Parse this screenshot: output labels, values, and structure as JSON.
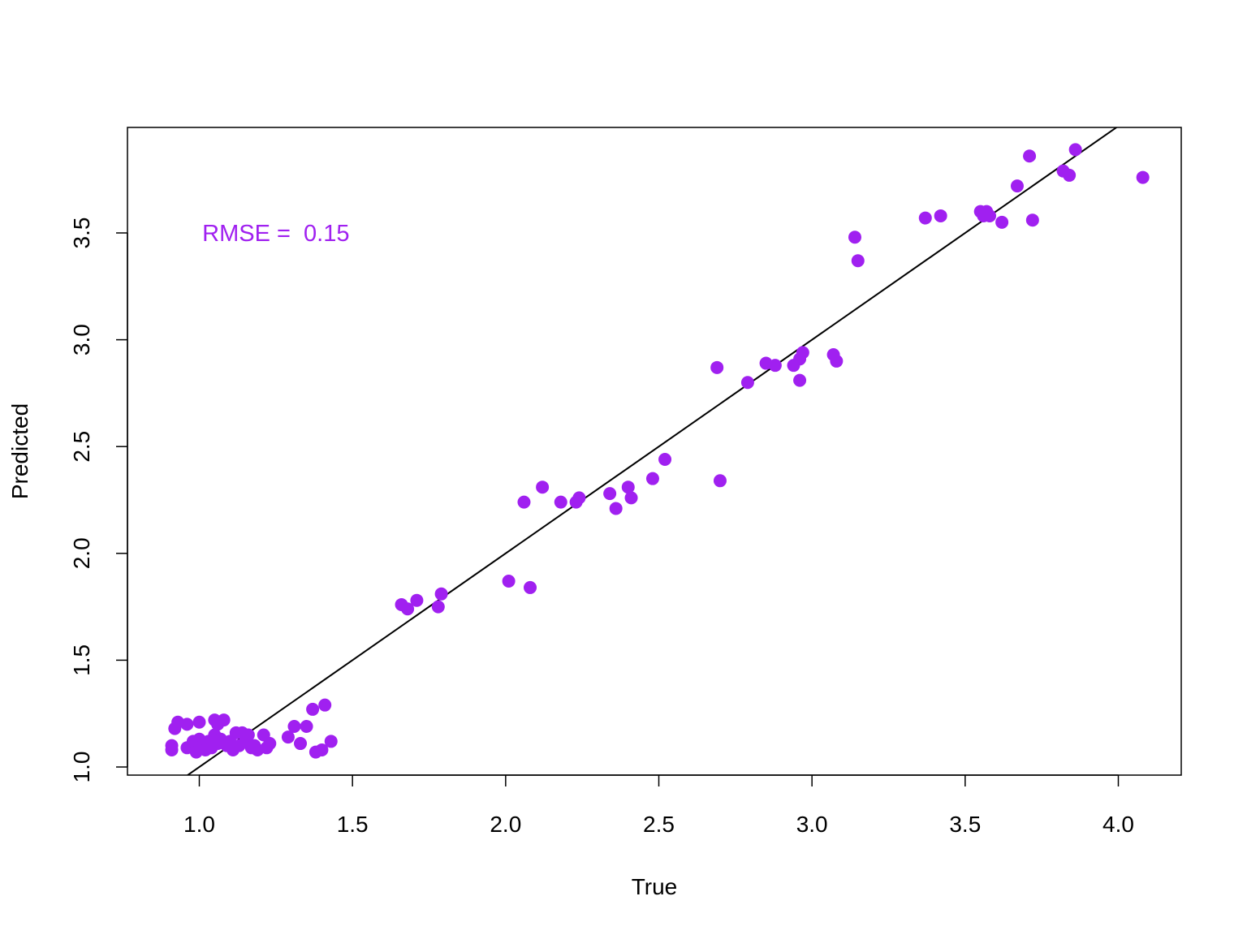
{
  "chart_data": {
    "type": "scatter",
    "title": "",
    "xlabel": "True",
    "ylabel": "Predicted",
    "xlim": [
      0.9,
      4.1
    ],
    "ylim": [
      0.96,
      4.0
    ],
    "xticks": [
      1.0,
      1.5,
      2.0,
      2.5,
      3.0,
      3.5,
      4.0
    ],
    "xtick_labels": [
      "1.0",
      "1.5",
      "2.0",
      "2.5",
      "3.0",
      "3.5",
      "4.0"
    ],
    "yticks": [
      1.0,
      1.5,
      2.0,
      2.5,
      3.0,
      3.5
    ],
    "ytick_labels": [
      "1.0",
      "1.5",
      "2.0",
      "2.5",
      "3.0",
      "3.5"
    ],
    "grid": false,
    "point_color": "#A020F0",
    "line_color": "#000000",
    "annotation": {
      "text": "RMSE =  0.15",
      "x": 1.25,
      "y": 3.5,
      "color": "#A020F0"
    },
    "reference_line": {
      "intercept": 0,
      "slope": 1
    },
    "points": [
      [
        0.91,
        1.1
      ],
      [
        0.91,
        1.08
      ],
      [
        0.92,
        1.18
      ],
      [
        0.93,
        1.21
      ],
      [
        0.96,
        1.2
      ],
      [
        0.96,
        1.09
      ],
      [
        0.98,
        1.12
      ],
      [
        0.99,
        1.07
      ],
      [
        1.0,
        1.13
      ],
      [
        1.0,
        1.21
      ],
      [
        1.01,
        1.1
      ],
      [
        1.02,
        1.08
      ],
      [
        1.03,
        1.12
      ],
      [
        1.04,
        1.09
      ],
      [
        1.05,
        1.22
      ],
      [
        1.05,
        1.15
      ],
      [
        1.06,
        1.2
      ],
      [
        1.06,
        1.11
      ],
      [
        1.07,
        1.13
      ],
      [
        1.08,
        1.22
      ],
      [
        1.09,
        1.1
      ],
      [
        1.1,
        1.12
      ],
      [
        1.11,
        1.08
      ],
      [
        1.12,
        1.16
      ],
      [
        1.13,
        1.1
      ],
      [
        1.14,
        1.16
      ],
      [
        1.15,
        1.12
      ],
      [
        1.16,
        1.15
      ],
      [
        1.17,
        1.09
      ],
      [
        1.18,
        1.1
      ],
      [
        1.19,
        1.08
      ],
      [
        1.21,
        1.15
      ],
      [
        1.22,
        1.09
      ],
      [
        1.23,
        1.11
      ],
      [
        1.29,
        1.14
      ],
      [
        1.31,
        1.19
      ],
      [
        1.33,
        1.11
      ],
      [
        1.35,
        1.19
      ],
      [
        1.37,
        1.27
      ],
      [
        1.38,
        1.07
      ],
      [
        1.4,
        1.08
      ],
      [
        1.41,
        1.29
      ],
      [
        1.43,
        1.12
      ],
      [
        1.66,
        1.76
      ],
      [
        1.68,
        1.74
      ],
      [
        1.71,
        1.78
      ],
      [
        1.78,
        1.75
      ],
      [
        1.79,
        1.81
      ],
      [
        2.01,
        1.87
      ],
      [
        2.06,
        2.24
      ],
      [
        2.08,
        1.84
      ],
      [
        2.12,
        2.31
      ],
      [
        2.18,
        2.24
      ],
      [
        2.23,
        2.24
      ],
      [
        2.24,
        2.26
      ],
      [
        2.34,
        2.28
      ],
      [
        2.36,
        2.21
      ],
      [
        2.4,
        2.31
      ],
      [
        2.41,
        2.26
      ],
      [
        2.48,
        2.35
      ],
      [
        2.52,
        2.44
      ],
      [
        2.69,
        2.87
      ],
      [
        2.7,
        2.34
      ],
      [
        2.79,
        2.8
      ],
      [
        2.85,
        2.89
      ],
      [
        2.88,
        2.88
      ],
      [
        2.94,
        2.88
      ],
      [
        2.96,
        2.81
      ],
      [
        2.96,
        2.91
      ],
      [
        2.97,
        2.94
      ],
      [
        3.07,
        2.93
      ],
      [
        3.08,
        2.9
      ],
      [
        3.14,
        3.48
      ],
      [
        3.15,
        3.37
      ],
      [
        3.37,
        3.57
      ],
      [
        3.42,
        3.58
      ],
      [
        3.55,
        3.6
      ],
      [
        3.56,
        3.58
      ],
      [
        3.57,
        3.6
      ],
      [
        3.58,
        3.58
      ],
      [
        3.62,
        3.55
      ],
      [
        3.67,
        3.72
      ],
      [
        3.71,
        3.86
      ],
      [
        3.72,
        3.56
      ],
      [
        3.82,
        3.79
      ],
      [
        3.84,
        3.77
      ],
      [
        3.86,
        3.89
      ],
      [
        4.08,
        3.76
      ]
    ]
  }
}
